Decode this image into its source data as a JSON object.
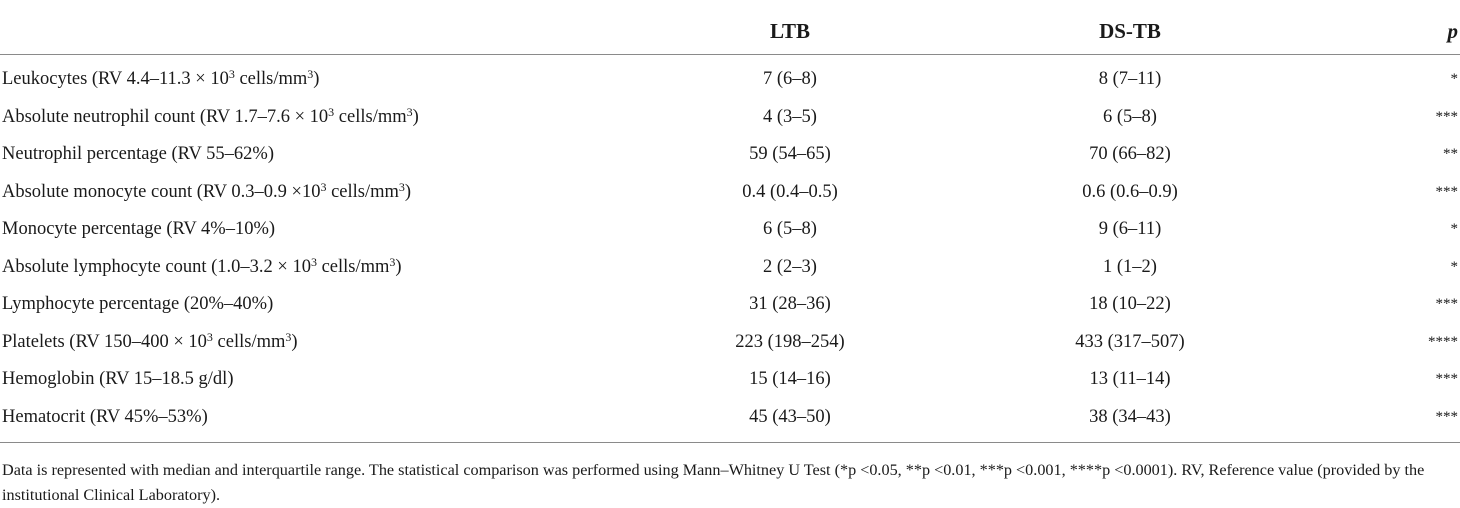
{
  "table": {
    "headers": {
      "label": "",
      "ltb": "LTB",
      "dstb": "DS-TB",
      "p": "p"
    },
    "rows": [
      {
        "pre": "Leukocytes (RV 4.4–11.3 × 10",
        "sup1": "3",
        "mid": " cells/mm",
        "sup2": "3",
        "post": ")",
        "ltb": "7 (6–8)",
        "dstb": "8 (7–11)",
        "p": "*"
      },
      {
        "pre": "Absolute neutrophil count (RV 1.7–7.6 × 10",
        "sup1": "3",
        "mid": " cells/mm",
        "sup2": "3",
        "post": ")",
        "ltb": "4 (3–5)",
        "dstb": "6 (5–8)",
        "p": "***"
      },
      {
        "pre": "Neutrophil percentage (RV 55–62%)",
        "sup1": "",
        "mid": "",
        "sup2": "",
        "post": "",
        "ltb": "59 (54–65)",
        "dstb": "70 (66–82)",
        "p": "**"
      },
      {
        "pre": "Absolute monocyte count (RV 0.3–0.9 ×10",
        "sup1": "3",
        "mid": " cells/mm",
        "sup2": "3",
        "post": ")",
        "ltb": "0.4 (0.4–0.5)",
        "dstb": "0.6 (0.6–0.9)",
        "p": "***"
      },
      {
        "pre": "Monocyte percentage (RV 4%–10%)",
        "sup1": "",
        "mid": "",
        "sup2": "",
        "post": "",
        "ltb": "6 (5–8)",
        "dstb": "9 (6–11)",
        "p": "*"
      },
      {
        "pre": "Absolute lymphocyte count (1.0–3.2 × 10",
        "sup1": "3",
        "mid": " cells/mm",
        "sup2": "3",
        "post": ")",
        "ltb": "2 (2–3)",
        "dstb": "1 (1–2)",
        "p": "*"
      },
      {
        "pre": "Lymphocyte percentage (20%–40%)",
        "sup1": "",
        "mid": "",
        "sup2": "",
        "post": "",
        "ltb": "31 (28–36)",
        "dstb": "18 (10–22)",
        "p": "***"
      },
      {
        "pre": "Platelets (RV 150–400 × 10",
        "sup1": "3",
        "mid": " cells/mm",
        "sup2": "3",
        "post": ")",
        "ltb": "223 (198–254)",
        "dstb": "433 (317–507)",
        "p": "****"
      },
      {
        "pre": "Hemoglobin (RV 15–18.5 g/dl)",
        "sup1": "",
        "mid": "",
        "sup2": "",
        "post": "",
        "ltb": "15 (14–16)",
        "dstb": "13 (11–14)",
        "p": "***"
      },
      {
        "pre": "Hematocrit (RV 45%–53%)",
        "sup1": "",
        "mid": "",
        "sup2": "",
        "post": "",
        "ltb": "45 (43–50)",
        "dstb": "38 (34–43)",
        "p": "***"
      }
    ]
  },
  "footnote": "Data is represented with median and interquartile range. The statistical comparison was performed using Mann–Whitney U Test (*p <0.05, **p <0.01, ***p <0.001, ****p <0.0001). RV, Reference value (provided by the institutional Clinical Laboratory)."
}
